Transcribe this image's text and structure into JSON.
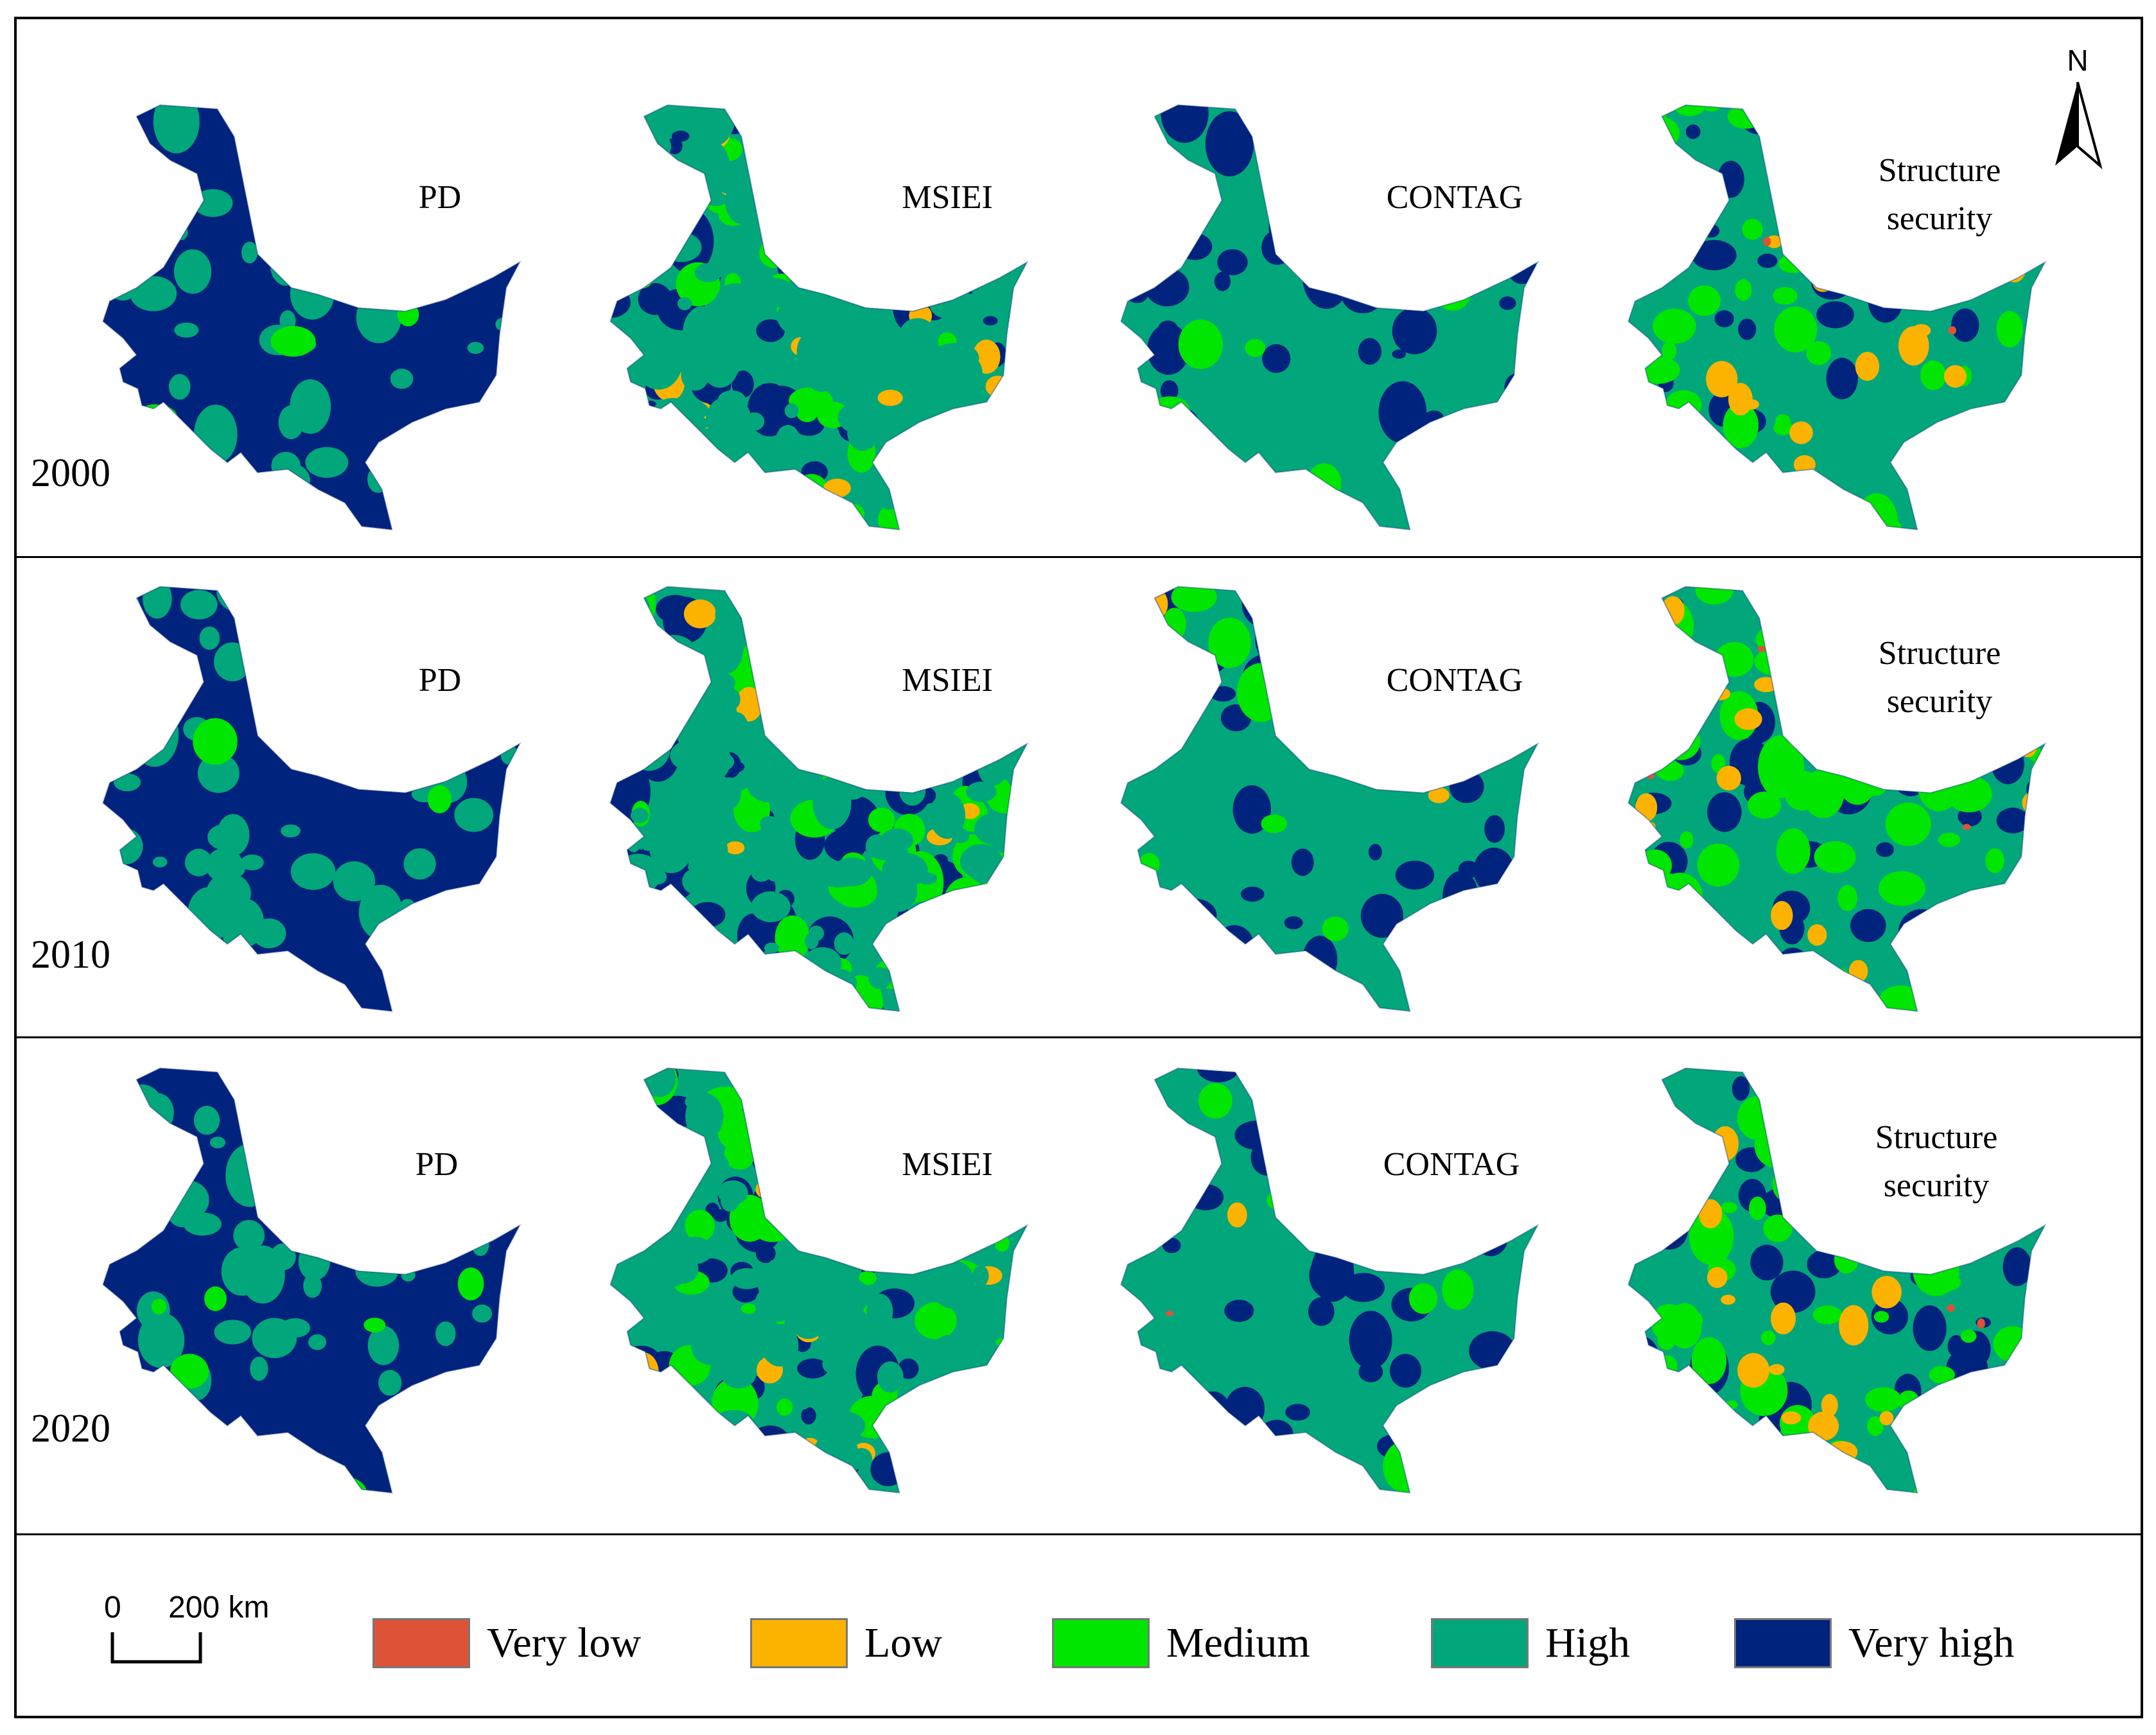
{
  "colors": {
    "very_low": "#dd5337",
    "low": "#fcb300",
    "medium": "#00e600",
    "high": "#01a77a",
    "very_high": "#00237d"
  },
  "columns": [
    {
      "id": "pd",
      "label": "PD",
      "dominant": "very_high"
    },
    {
      "id": "msiei",
      "label": "MSIEI",
      "dominant": "high"
    },
    {
      "id": "contag",
      "label": "CONTAG",
      "dominant": "high"
    },
    {
      "id": "structure",
      "label": "Structure security",
      "dominant": "high"
    }
  ],
  "rows": [
    {
      "year": "2000"
    },
    {
      "year": "2010"
    },
    {
      "year": "2020"
    }
  ],
  "north_arrow": {
    "label": "N"
  },
  "scale_bar": {
    "start": "0",
    "end": "200 km"
  },
  "legend": [
    {
      "key": "very_low",
      "label": "Very low"
    },
    {
      "key": "low",
      "label": "Low"
    },
    {
      "key": "medium",
      "label": "Medium"
    },
    {
      "key": "high",
      "label": "High"
    },
    {
      "key": "very_high",
      "label": "Very high"
    }
  ]
}
